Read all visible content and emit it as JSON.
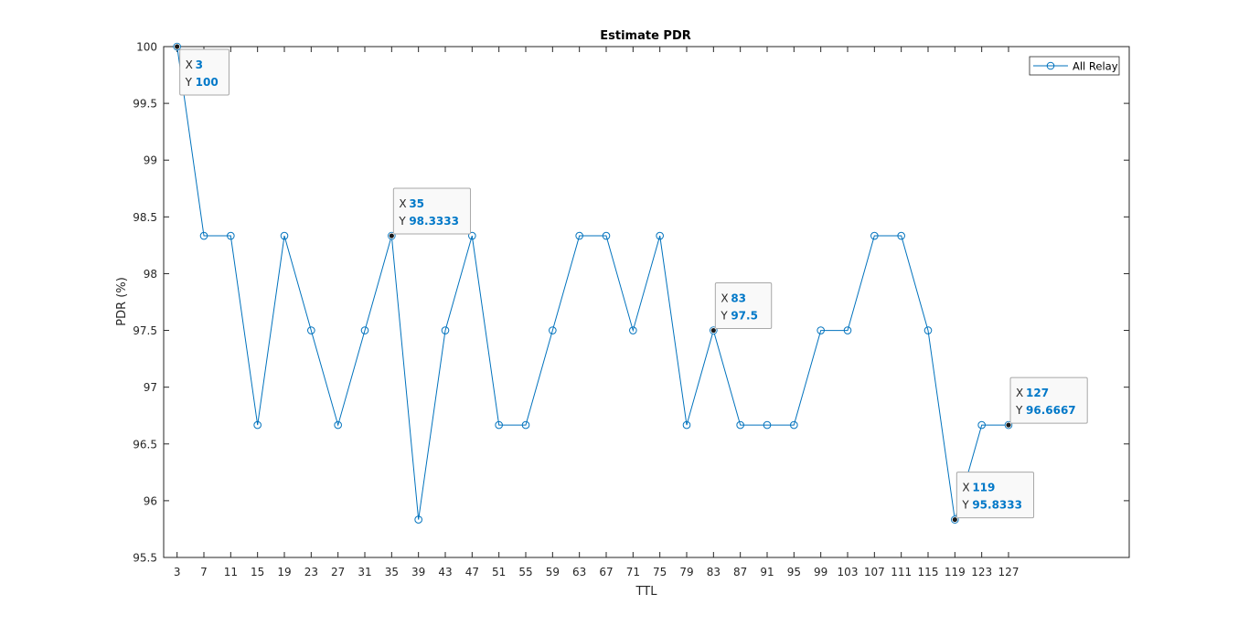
{
  "chart_data": {
    "type": "line",
    "title": "Estimate PDR",
    "xlabel": "TTL",
    "ylabel": "PDR (%)",
    "x": [
      3,
      7,
      11,
      15,
      19,
      23,
      27,
      31,
      35,
      39,
      43,
      47,
      51,
      55,
      59,
      63,
      67,
      71,
      75,
      79,
      83,
      87,
      91,
      95,
      99,
      103,
      107,
      111,
      115,
      119,
      123,
      127
    ],
    "series": [
      {
        "name": "All Relay",
        "color": "#0072bd",
        "marker": "circle",
        "values": [
          100,
          98.3333,
          98.3333,
          96.6667,
          98.3333,
          97.5,
          96.6667,
          97.5,
          98.3333,
          95.8333,
          97.5,
          98.3333,
          96.6667,
          96.6667,
          97.5,
          98.3333,
          98.3333,
          97.5,
          98.3333,
          96.6667,
          97.5,
          96.6667,
          96.6667,
          96.6667,
          97.5,
          97.5,
          98.3333,
          98.3333,
          97.5,
          95.8333,
          96.6667,
          96.6667
        ]
      }
    ],
    "xlim": [
      1,
      145
    ],
    "ylim": [
      95.5,
      100
    ],
    "xticks": [
      "3",
      "7",
      "11",
      "15",
      "19",
      "23",
      "27",
      "31",
      "35",
      "39",
      "43",
      "47",
      "51",
      "55",
      "59",
      "63",
      "67",
      "71",
      "75",
      "79",
      "83",
      "87",
      "91",
      "95",
      "99",
      "103",
      "107",
      "111",
      "115",
      "119",
      "123",
      "127"
    ],
    "yticks": [
      "95.5",
      "96",
      "96.5",
      "97",
      "97.5",
      "98",
      "98.5",
      "99",
      "99.5",
      "100"
    ],
    "legend_position": "top-right",
    "grid": false,
    "annotations": [
      {
        "x": 3,
        "y": 100,
        "x_text": "3",
        "y_text": "100",
        "placement": "below-right"
      },
      {
        "x": 35,
        "y": 98.3333,
        "x_text": "35",
        "y_text": "98.3333",
        "placement": "above-right"
      },
      {
        "x": 83,
        "y": 97.5,
        "x_text": "83",
        "y_text": "97.5",
        "placement": "above-right"
      },
      {
        "x": 119,
        "y": 95.8333,
        "x_text": "119",
        "y_text": "95.8333",
        "placement": "above-right"
      },
      {
        "x": 127,
        "y": 96.6667,
        "x_text": "127",
        "y_text": "96.6667",
        "placement": "above-right"
      }
    ],
    "annotation_labels": {
      "x": "X",
      "y": "Y"
    }
  }
}
